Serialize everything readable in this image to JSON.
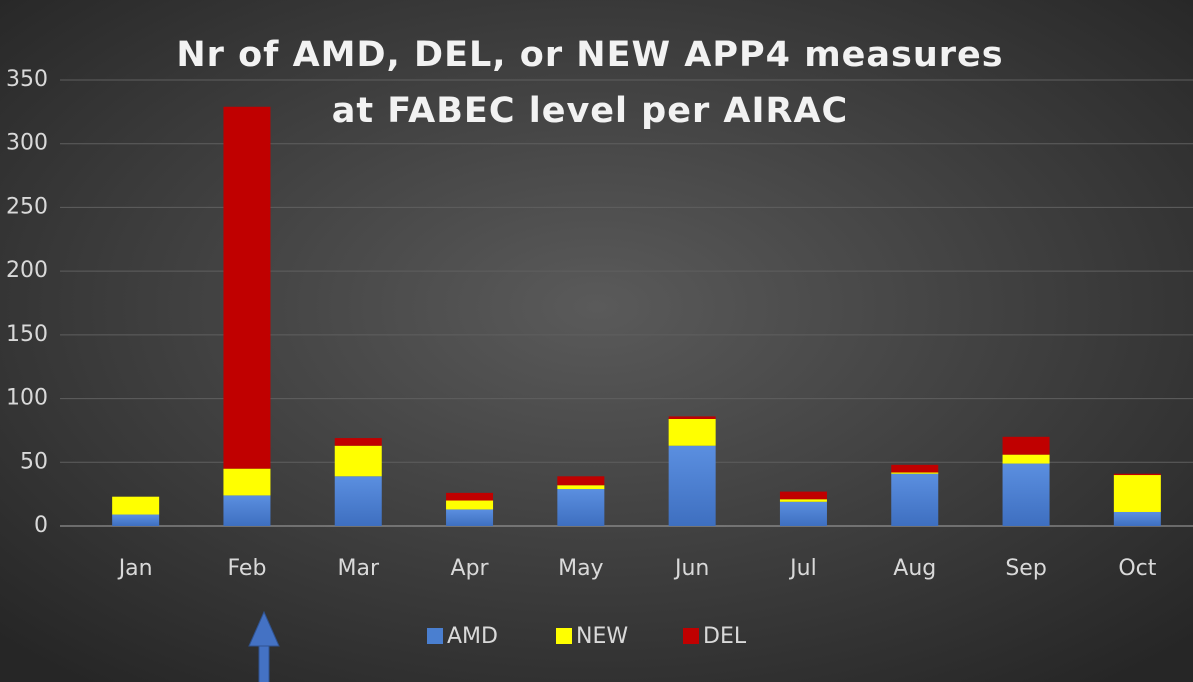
{
  "chart_data": {
    "type": "stacked_bar",
    "title": [
      "Nr of AMD, DEL, or NEW APP4 measures",
      "at FABEC level per AIRAC"
    ],
    "categories": [
      "Jan",
      "Feb",
      "Mar",
      "Apr",
      "May",
      "Jun",
      "Jul",
      "Aug",
      "Sep",
      "Oct"
    ],
    "series": [
      {
        "name": "AMD",
        "color": "#4a7fd0",
        "values": [
          9,
          24,
          39,
          13,
          29,
          63,
          19,
          41,
          49,
          11
        ]
      },
      {
        "name": "NEW",
        "color": "#ffff00",
        "values": [
          14,
          21,
          24,
          7,
          3,
          21,
          2,
          1,
          7,
          29
        ]
      },
      {
        "name": "DEL",
        "color": "#c00000",
        "values": [
          0,
          284,
          6,
          6,
          7,
          2,
          6,
          6,
          14,
          1
        ]
      }
    ],
    "ylim": [
      0,
      350
    ],
    "yticks": [
      0,
      50,
      100,
      150,
      200,
      250,
      300,
      350
    ],
    "grid": true,
    "legend": "bottom"
  }
}
